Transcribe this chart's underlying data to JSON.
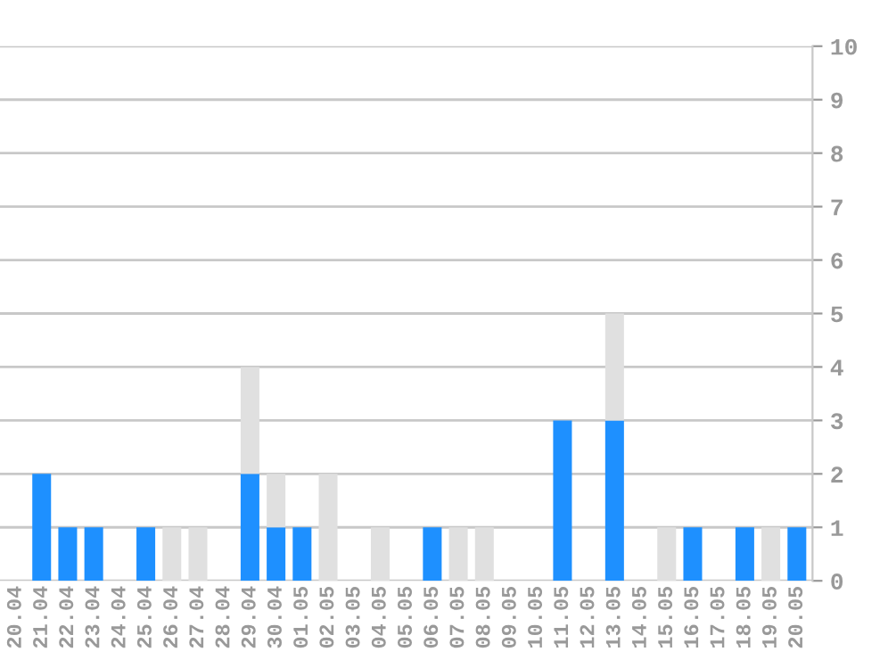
{
  "chart_data": {
    "type": "bar",
    "stacked": true,
    "categories": [
      "20.04",
      "21.04",
      "22.04",
      "23.04",
      "24.04",
      "25.04",
      "26.04",
      "27.04",
      "28.04",
      "29.04",
      "30.04",
      "01.05",
      "02.05",
      "03.05",
      "04.05",
      "05.05",
      "06.05",
      "07.05",
      "08.05",
      "09.05",
      "10.05",
      "11.05",
      "12.05",
      "13.05",
      "14.05",
      "15.05",
      "16.05",
      "17.05",
      "18.05",
      "19.05",
      "20.05"
    ],
    "series": [
      {
        "color": "#1e90ff",
        "values": [
          0,
          2,
          1,
          1,
          0,
          1,
          0,
          0,
          0,
          2,
          1,
          1,
          0,
          0,
          0,
          0,
          1,
          0,
          0,
          0,
          0,
          3,
          0,
          3,
          0,
          0,
          1,
          0,
          1,
          0,
          1
        ]
      },
      {
        "color": "#e0e0e0",
        "values": [
          0,
          0,
          0,
          0,
          0,
          0,
          1,
          1,
          0,
          2,
          1,
          0,
          2,
          0,
          1,
          0,
          0,
          1,
          1,
          0,
          0,
          0,
          0,
          2,
          0,
          1,
          0,
          0,
          0,
          1,
          0
        ]
      }
    ],
    "ylim": [
      0,
      10
    ],
    "yticks": [
      0,
      1,
      2,
      3,
      4,
      5,
      6,
      7,
      8,
      9,
      10
    ],
    "grid": "y"
  }
}
